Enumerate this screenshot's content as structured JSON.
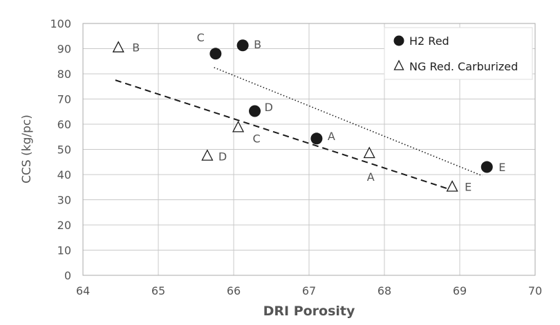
{
  "chart_data": {
    "type": "scatter",
    "xlabel": "DRI Porosity",
    "ylabel": "CCS  (kg/pc)",
    "xlim": [
      64,
      70
    ],
    "ylim": [
      0,
      100
    ],
    "x_ticks": [
      "64",
      "65",
      "66",
      "67",
      "68",
      "69",
      "70"
    ],
    "y_ticks": [
      "0",
      "10",
      "20",
      "30",
      "40",
      "50",
      "60",
      "70",
      "80",
      "90",
      "100"
    ],
    "grid": true,
    "legend_position": "top-right",
    "series": [
      {
        "name": "H2 Red",
        "marker": "filled-circle",
        "color": "#1a1a1a",
        "points": [
          {
            "label": "C",
            "x": 65.76,
            "y": 88.0
          },
          {
            "label": "B",
            "x": 66.12,
            "y": 91.3
          },
          {
            "label": "D",
            "x": 66.28,
            "y": 65.2
          },
          {
            "label": "A",
            "x": 67.1,
            "y": 54.3
          },
          {
            "label": "E",
            "x": 69.36,
            "y": 43.0
          }
        ],
        "trendline": {
          "style": "dotted",
          "x": [
            65.74,
            69.3
          ],
          "y": [
            82.5,
            39.5
          ]
        }
      },
      {
        "name": "NG Red. Carburized",
        "marker": "open-triangle",
        "color": "#1a1a1a",
        "points": [
          {
            "label": "B",
            "x": 64.47,
            "y": 90.5
          },
          {
            "label": "D",
            "x": 65.65,
            "y": 47.5
          },
          {
            "label": "C",
            "x": 66.06,
            "y": 58.8
          },
          {
            "label": "A",
            "x": 67.8,
            "y": 48.5
          },
          {
            "label": "E",
            "x": 68.9,
            "y": 35.2
          }
        ],
        "trendline": {
          "style": "dashed",
          "x": [
            64.43,
            68.88
          ],
          "y": [
            77.5,
            34.0
          ]
        }
      }
    ]
  }
}
